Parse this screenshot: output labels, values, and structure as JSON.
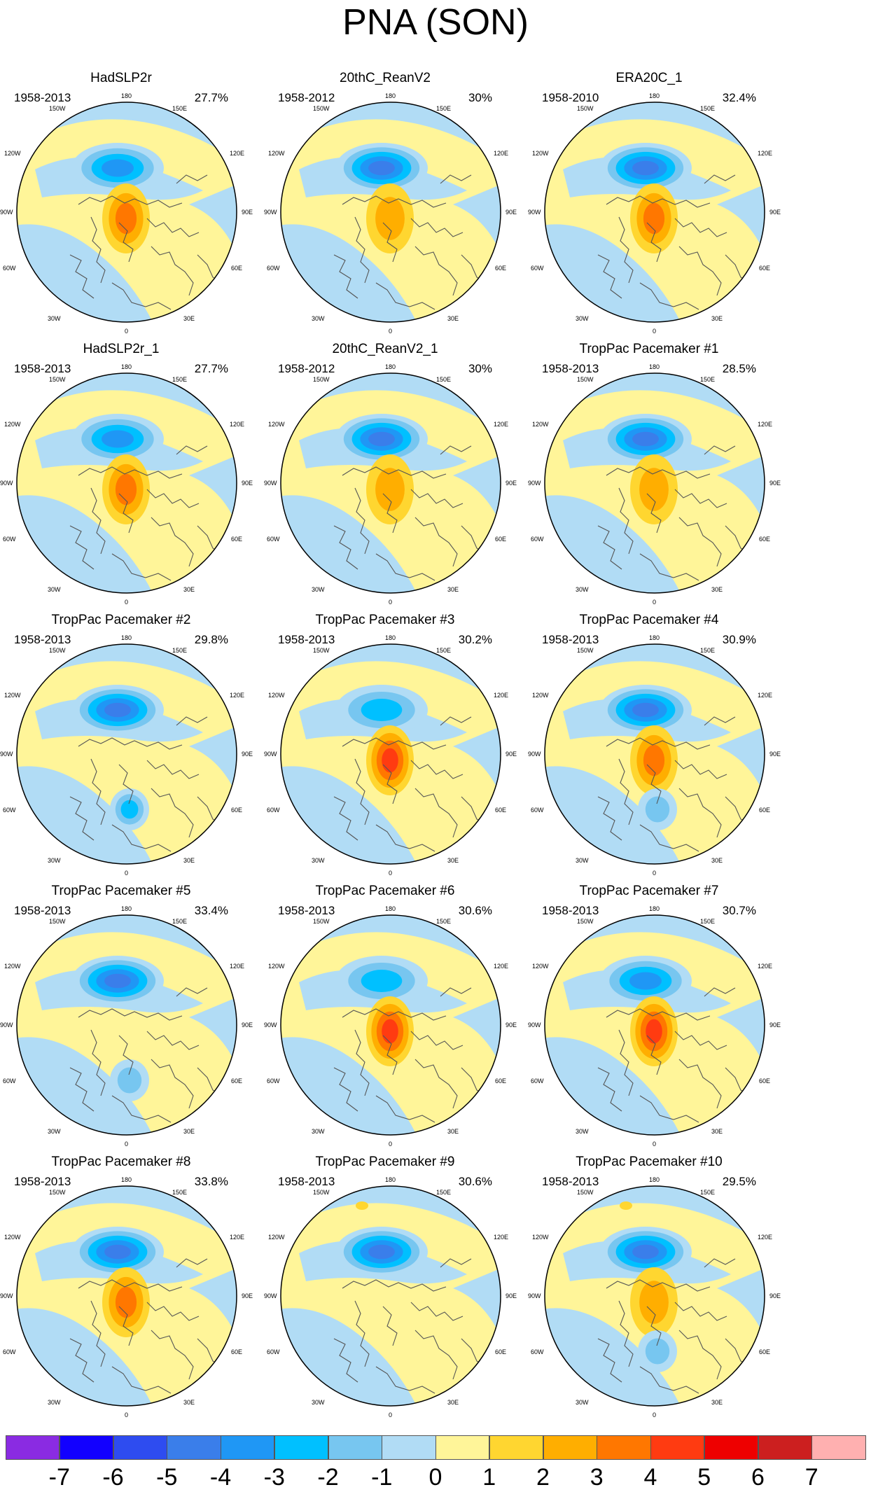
{
  "title": "PNA (SON)",
  "lon_labels": {
    "top": "180",
    "nw": "150W",
    "ne": "150E",
    "w_upper": "120W",
    "e_upper": "120E",
    "west": "90W",
    "east": "90E",
    "w_lower": "60W",
    "e_lower": "60E",
    "sw": "30W",
    "se": "30E",
    "bottom": "0"
  },
  "panels": [
    {
      "title": "HadSLP2r",
      "period": "1958-2013",
      "percent": "27.7%",
      "pattern": {
        "npac": -3.5,
        "arctic": 2.5,
        "atl": 0,
        "extra": 0
      }
    },
    {
      "title": "20thC_ReanV2",
      "period": "1958-2012",
      "percent": "30%",
      "pattern": {
        "npac": -4.5,
        "arctic": 2,
        "atl": 0,
        "extra": 0
      }
    },
    {
      "title": "ERA20C_1",
      "period": "1958-2010",
      "percent": "32.4%",
      "pattern": {
        "npac": -4.5,
        "arctic": 2.5,
        "atl": 0,
        "extra": 0
      }
    },
    {
      "title": "HadSLP2r_1",
      "period": "1958-2013",
      "percent": "27.7%",
      "pattern": {
        "npac": -3.5,
        "arctic": 2.5,
        "atl": 0,
        "extra": 0
      }
    },
    {
      "title": "20thC_ReanV2_1",
      "period": "1958-2012",
      "percent": "30%",
      "pattern": {
        "npac": -4.5,
        "arctic": 2,
        "atl": 0,
        "extra": 0
      }
    },
    {
      "title": "TropPac Pacemaker #1",
      "period": "1958-2013",
      "percent": "28.5%",
      "pattern": {
        "npac": -4.5,
        "arctic": 2,
        "atl": 0,
        "extra": 0
      }
    },
    {
      "title": "TropPac Pacemaker #2",
      "period": "1958-2013",
      "percent": "29.8%",
      "pattern": {
        "npac": -4.5,
        "arctic": 0,
        "atl": -2.5,
        "extra": 0
      }
    },
    {
      "title": "TropPac Pacemaker #3",
      "period": "1958-2013",
      "percent": "30.2%",
      "pattern": {
        "npac": -2.5,
        "arctic": 3.5,
        "atl": 0,
        "extra": 0
      }
    },
    {
      "title": "TropPac Pacemaker #4",
      "period": "1958-2013",
      "percent": "30.9%",
      "pattern": {
        "npac": -4.5,
        "arctic": 2.5,
        "atl": -1.5,
        "extra": 0
      }
    },
    {
      "title": "TropPac Pacemaker #5",
      "period": "1958-2013",
      "percent": "33.4%",
      "pattern": {
        "npac": -4.5,
        "arctic": 0,
        "atl": -1.5,
        "extra": 0
      }
    },
    {
      "title": "TropPac Pacemaker #6",
      "period": "1958-2013",
      "percent": "30.6%",
      "pattern": {
        "npac": -2.5,
        "arctic": 3.5,
        "atl": 0,
        "extra": 0
      }
    },
    {
      "title": "TropPac Pacemaker #7",
      "period": "1958-2013",
      "percent": "30.7%",
      "pattern": {
        "npac": -4,
        "arctic": 3.5,
        "atl": 0,
        "extra": 0
      }
    },
    {
      "title": "TropPac Pacemaker #8",
      "period": "1958-2013",
      "percent": "33.8%",
      "pattern": {
        "npac": -4.5,
        "arctic": 3,
        "atl": 0,
        "extra": 0
      }
    },
    {
      "title": "TropPac Pacemaker #9",
      "period": "1958-2013",
      "percent": "30.6%",
      "pattern": {
        "npac": -4.5,
        "arctic": 0,
        "atl": 0,
        "extra": 1.5
      }
    },
    {
      "title": "TropPac Pacemaker #10",
      "period": "1958-2013",
      "percent": "29.5%",
      "pattern": {
        "npac": -4.5,
        "arctic": 2,
        "atl": -1.5,
        "extra": 1.5
      }
    }
  ],
  "colorbar": {
    "colors": [
      "#8a2be2",
      "#1200ff",
      "#2e4cf0",
      "#3a7eea",
      "#1f97f5",
      "#00c0ff",
      "#77c6f0",
      "#b1dcf5",
      "#fff599",
      "#ffd630",
      "#ffae00",
      "#ff7700",
      "#ff3b11",
      "#ee0000",
      "#cc1f1f",
      "#ffb0b0"
    ],
    "labels": [
      "-7",
      "-6",
      "-5",
      "-4",
      "-3",
      "-2",
      "-1",
      "0",
      "1",
      "2",
      "3",
      "4",
      "5",
      "6",
      "7"
    ]
  }
}
